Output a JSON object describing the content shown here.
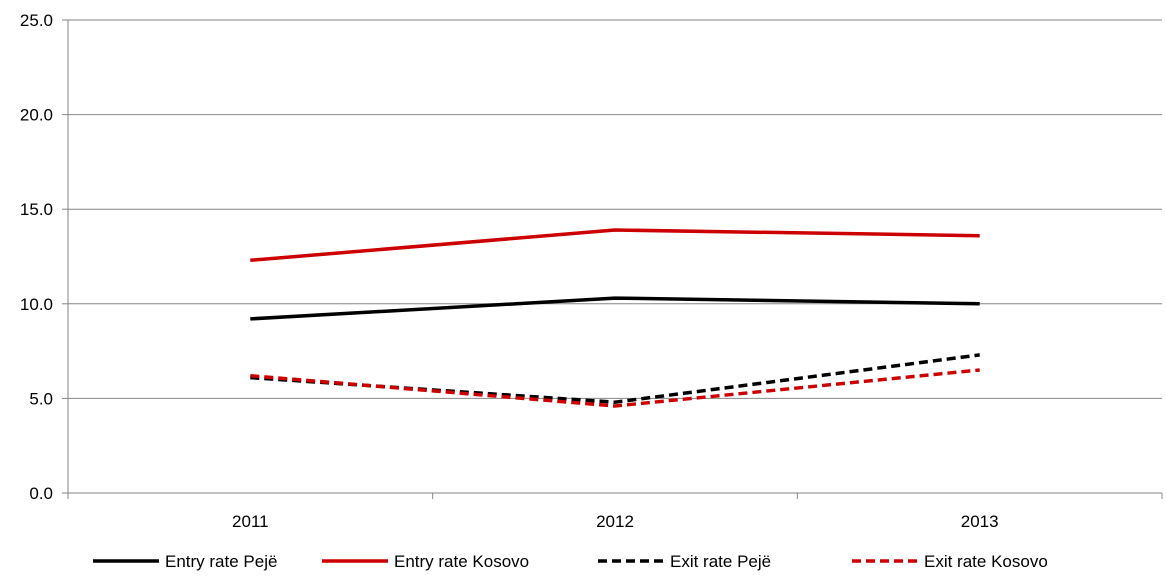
{
  "chart_data": {
    "type": "line",
    "categories": [
      "2011",
      "2012",
      "2013"
    ],
    "ylim": [
      0,
      25
    ],
    "yticks": [
      "0.0",
      "5.0",
      "10.0",
      "15.0",
      "20.0",
      "25.0"
    ],
    "grid": true,
    "legend_position": "bottom",
    "series": [
      {
        "name": "Entry rate Pejë",
        "values": [
          9.2,
          10.3,
          10.0
        ],
        "color": "#000000",
        "dashed": false
      },
      {
        "name": "Entry rate Kosovo",
        "values": [
          12.3,
          13.9,
          13.6
        ],
        "color": "#cc0000",
        "dashed": false
      },
      {
        "name": "Exit rate Pejë",
        "values": [
          6.1,
          4.8,
          7.3
        ],
        "color": "#000000",
        "dashed": true
      },
      {
        "name": "Exit rate Kosovo",
        "values": [
          6.2,
          4.6,
          6.5
        ],
        "color": "#cc0000",
        "dashed": true
      }
    ]
  }
}
